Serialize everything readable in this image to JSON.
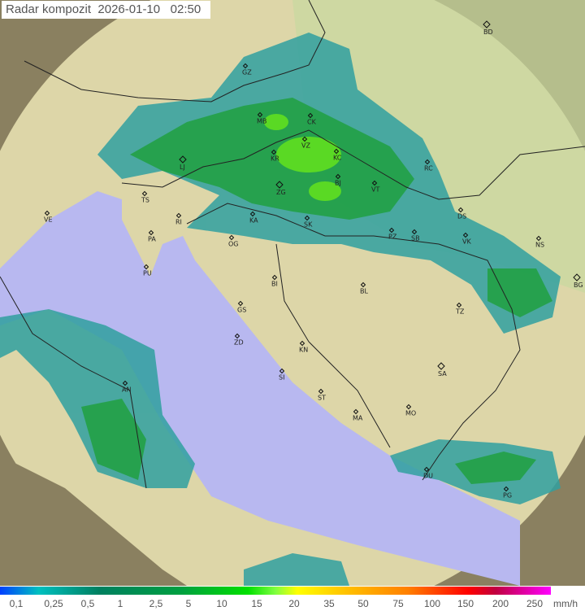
{
  "title": {
    "label": "Radar kompozit",
    "date": "2026-01-10",
    "time": "02:50"
  },
  "colors": {
    "sea": "#b8b8f0",
    "land": "#d8d4a0",
    "outside": "#8a8060",
    "rain_light": "#30a0a0",
    "rain_mid": "#20a040",
    "rain_heavy": "#60e020"
  },
  "cities": [
    "BD",
    "GZ",
    "MB",
    "CK",
    "VZ",
    "KC",
    "KR",
    "LJ",
    "ZG",
    "BJ",
    "VT",
    "RC",
    "TS",
    "VE",
    "RI",
    "KA",
    "SK",
    "DS",
    "PZ",
    "SB",
    "VK",
    "NS",
    "PA",
    "OG",
    "PU",
    "BG",
    "BI",
    "BL",
    "TZ",
    "GS",
    "ZD",
    "KN",
    "SA",
    "AN",
    "SI",
    "ST",
    "MO",
    "MA",
    "DU",
    "PG"
  ],
  "legend": {
    "ticks": [
      "0,1",
      "0,25",
      "0,5",
      "1",
      "2,5",
      "5",
      "10",
      "15",
      "20",
      "35",
      "50",
      "75",
      "100",
      "150",
      "200",
      "250"
    ],
    "unit": "mm/h"
  }
}
